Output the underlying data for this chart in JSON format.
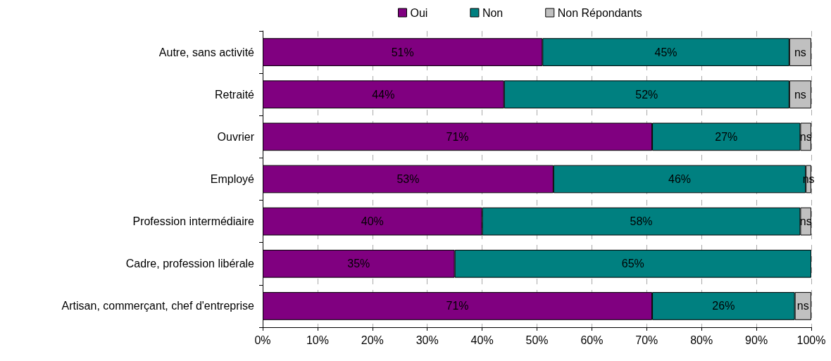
{
  "chart_data": {
    "type": "bar",
    "orientation": "horizontal",
    "stacked": true,
    "categories": [
      "Autre, sans activité",
      "Retraité",
      "Ouvrier",
      "Employé",
      "Profession intermédiaire",
      "Cadre, profession libérale",
      "Artisan, commerçant, chef d'entreprise"
    ],
    "series": [
      {
        "name": "Oui",
        "color": "#800080",
        "values": [
          51,
          44,
          71,
          53,
          40,
          35,
          71
        ],
        "value_labels": [
          "51%",
          "44%",
          "71%",
          "53%",
          "40%",
          "35%",
          "71%"
        ]
      },
      {
        "name": "Non",
        "color": "#008080",
        "values": [
          45,
          52,
          27,
          46,
          58,
          65,
          26
        ],
        "value_labels": [
          "45%",
          "52%",
          "27%",
          "46%",
          "58%",
          "65%",
          "26%"
        ]
      },
      {
        "name": "Non Répondants",
        "color": "#c0c0c0",
        "values": [
          4,
          4,
          2,
          1,
          2,
          null,
          3
        ],
        "value_labels": [
          "ns",
          "ns",
          "ns",
          "ns",
          "ns",
          null,
          "ns"
        ]
      }
    ],
    "xlim": [
      0,
      100
    ],
    "xticks": [
      {
        "value": 0,
        "label": "0%"
      },
      {
        "value": 10,
        "label": "10%"
      },
      {
        "value": 20,
        "label": "20%"
      },
      {
        "value": 30,
        "label": "30%"
      },
      {
        "value": 40,
        "label": "40%"
      },
      {
        "value": 50,
        "label": "50%"
      },
      {
        "value": 60,
        "label": "60%"
      },
      {
        "value": 70,
        "label": "70%"
      },
      {
        "value": 80,
        "label": "80%"
      },
      {
        "value": 90,
        "label": "90%"
      },
      {
        "value": 100,
        "label": "100%"
      }
    ],
    "grid": "x",
    "legend": "top"
  }
}
